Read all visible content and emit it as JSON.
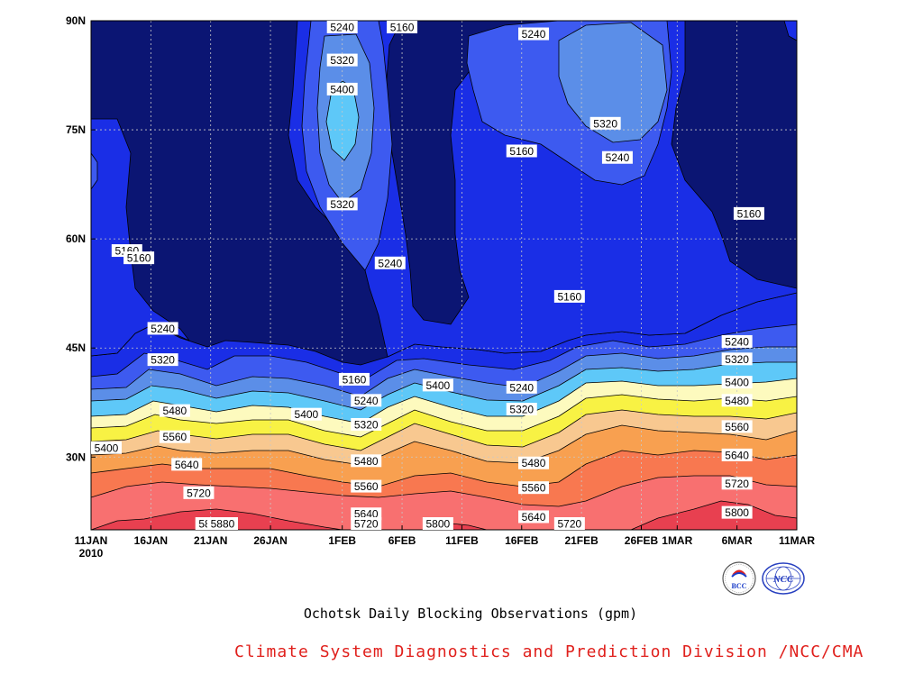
{
  "chart_data": {
    "type": "heatmap",
    "subtype": "filled contour (time vs latitude)",
    "title": "Ochotsk Daily Blocking Observations (gpm)",
    "xlabel": "",
    "ylabel": "",
    "x_tick_labels": [
      "11JAN",
      "16JAN",
      "21JAN",
      "26JAN",
      "1FEB",
      "6FEB",
      "11FEB",
      "16FEB",
      "21FEB",
      "26FEB",
      "1MAR",
      "6MAR",
      "11MAR"
    ],
    "x_tick_sublabels": [
      "2010"
    ],
    "x_dates": [
      "2010-01-11",
      "2010-01-16",
      "2010-01-21",
      "2010-01-26",
      "2010-02-01",
      "2010-02-06",
      "2010-02-11",
      "2010-02-16",
      "2010-02-21",
      "2010-02-26",
      "2010-03-01",
      "2010-03-06",
      "2010-03-11"
    ],
    "xlim": [
      "2010-01-11",
      "2010-03-11"
    ],
    "y_tick_labels": [
      "30N",
      "45N",
      "60N",
      "75N",
      "90N"
    ],
    "y_ticks": [
      30,
      45,
      60,
      75,
      90
    ],
    "ylim": [
      20,
      90
    ],
    "contour_levels": [
      5160,
      5240,
      5320,
      5400,
      5480,
      5560,
      5640,
      5720,
      5800,
      5880
    ],
    "fill_colors": [
      "#0b1573",
      "#1a2ee6",
      "#3d5af0",
      "#5b8ee8",
      "#5ec8f8",
      "#fdfabe",
      "#f8f244",
      "#f8c890",
      "#f8a050",
      "#f87850",
      "#f87070",
      "#e84050"
    ],
    "grid": true,
    "contour_labels": [
      {
        "date": "2010-02-01",
        "lat": 89.5,
        "value": 5240
      },
      {
        "date": "2010-02-06",
        "lat": 89.2,
        "value": 5160
      },
      {
        "date": "2010-02-17",
        "lat": 88.2,
        "value": 5240
      },
      {
        "date": "2010-02-01",
        "lat": 84.6,
        "value": 5320
      },
      {
        "date": "2010-02-01",
        "lat": 80.6,
        "value": 5400
      },
      {
        "date": "2010-02-23",
        "lat": 75.9,
        "value": 5320
      },
      {
        "date": "2010-02-16",
        "lat": 72.1,
        "value": 5160
      },
      {
        "date": "2010-02-24",
        "lat": 71.2,
        "value": 5240
      },
      {
        "date": "2010-02-01",
        "lat": 64.8,
        "value": 5320
      },
      {
        "date": "2010-03-07",
        "lat": 63.5,
        "value": 5160
      },
      {
        "date": "2010-01-14",
        "lat": 58.4,
        "value": 5160
      },
      {
        "date": "2010-01-15",
        "lat": 57.4,
        "value": 5160
      },
      {
        "date": "2010-02-05",
        "lat": 56.7,
        "value": 5240
      },
      {
        "date": "2010-02-20",
        "lat": 52.1,
        "value": 5160
      },
      {
        "date": "2010-01-17",
        "lat": 47.7,
        "value": 5240
      },
      {
        "date": "2010-03-06",
        "lat": 45.9,
        "value": 5240
      },
      {
        "date": "2010-01-17",
        "lat": 43.4,
        "value": 5320
      },
      {
        "date": "2010-03-06",
        "lat": 43.5,
        "value": 5320
      },
      {
        "date": "2010-02-02",
        "lat": 40.7,
        "value": 5160
      },
      {
        "date": "2010-03-06",
        "lat": 40.3,
        "value": 5400
      },
      {
        "date": "2010-02-09",
        "lat": 39.9,
        "value": 5400
      },
      {
        "date": "2010-02-16",
        "lat": 39.6,
        "value": 5240
      },
      {
        "date": "2010-02-03",
        "lat": 37.8,
        "value": 5240
      },
      {
        "date": "2010-03-06",
        "lat": 37.8,
        "value": 5480
      },
      {
        "date": "2010-01-18",
        "lat": 36.4,
        "value": 5480
      },
      {
        "date": "2010-01-29",
        "lat": 35.9,
        "value": 5400
      },
      {
        "date": "2010-02-16",
        "lat": 36.6,
        "value": 5320
      },
      {
        "date": "2010-02-03",
        "lat": 34.5,
        "value": 5320
      },
      {
        "date": "2010-03-06",
        "lat": 34.2,
        "value": 5560
      },
      {
        "date": "2010-01-18",
        "lat": 32.8,
        "value": 5560
      },
      {
        "date": "2010-01-11",
        "lat": 31.3,
        "value": 5400
      },
      {
        "date": "2010-03-06",
        "lat": 30.3,
        "value": 5640
      },
      {
        "date": "2010-01-19",
        "lat": 29.0,
        "value": 5640
      },
      {
        "date": "2010-02-03",
        "lat": 29.5,
        "value": 5480
      },
      {
        "date": "2010-02-17",
        "lat": 29.2,
        "value": 5480
      },
      {
        "date": "2010-02-03",
        "lat": 26.0,
        "value": 5560
      },
      {
        "date": "2010-02-17",
        "lat": 25.8,
        "value": 5560
      },
      {
        "date": "2010-03-06",
        "lat": 26.4,
        "value": 5720
      },
      {
        "date": "2010-01-20",
        "lat": 25.1,
        "value": 5720
      },
      {
        "date": "2010-02-03",
        "lat": 22.2,
        "value": 5640
      },
      {
        "date": "2010-02-17",
        "lat": 21.8,
        "value": 5640
      },
      {
        "date": "2010-03-06",
        "lat": 22.4,
        "value": 5800
      },
      {
        "date": "2010-01-21",
        "lat": 20.6,
        "value": 5800
      },
      {
        "date": "2010-02-03",
        "lat": 18.2,
        "value": 5720
      },
      {
        "date": "2010-02-20",
        "lat": 17.7,
        "value": 5720
      },
      {
        "date": "2010-02-09",
        "lat": 18.4,
        "value": 5800
      },
      {
        "date": "2010-01-22",
        "lat": 14.9,
        "value": 5880
      }
    ]
  },
  "footer": {
    "org_line": "Climate System Diagnostics and Prediction Division /NCC/CMA",
    "logos": [
      {
        "icon": "bcc-logo-icon",
        "text": "BCC"
      },
      {
        "icon": "ncc-logo-icon",
        "text": "NCC"
      }
    ]
  }
}
